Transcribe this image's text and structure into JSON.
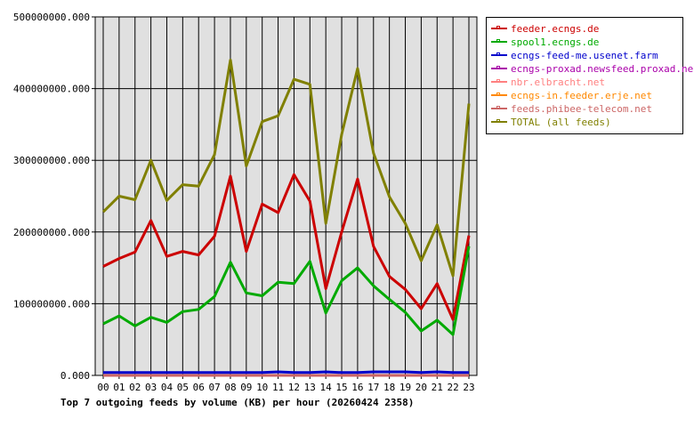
{
  "chart_data": {
    "type": "line",
    "title": "Top 7 outgoing feeds by volume (KB) per hour (20260424 2358)",
    "categories": [
      "00",
      "01",
      "02",
      "03",
      "04",
      "05",
      "06",
      "07",
      "08",
      "09",
      "10",
      "11",
      "12",
      "13",
      "14",
      "15",
      "16",
      "17",
      "18",
      "19",
      "20",
      "21",
      "22",
      "23"
    ],
    "ylim": [
      0,
      500000000
    ],
    "y_ticks": [
      "0.000",
      "100000000.000",
      "200000000.000",
      "300000000.000",
      "400000000.000",
      "500000000.000"
    ],
    "grid": true,
    "legend_position": "right",
    "series": [
      {
        "name": "feeder.ecngs.de",
        "color": "#cc0000",
        "values": [
          152000000,
          163000000,
          172000000,
          216000000,
          166000000,
          173000000,
          168000000,
          194000000,
          278000000,
          173000000,
          239000000,
          227000000,
          280000000,
          243000000,
          121000000,
          200000000,
          274000000,
          180000000,
          138000000,
          120000000,
          93000000,
          128000000,
          78000000,
          195000000
        ]
      },
      {
        "name": "spool1.ecngs.de",
        "color": "#00aa00",
        "values": [
          72000000,
          83000000,
          69000000,
          81000000,
          74000000,
          89000000,
          92000000,
          110000000,
          158000000,
          115000000,
          111000000,
          130000000,
          128000000,
          159000000,
          87000000,
          132000000,
          150000000,
          125000000,
          106000000,
          88000000,
          62000000,
          77000000,
          57000000,
          180000000
        ]
      },
      {
        "name": "ecngs-feed-me.usenet.farm",
        "color": "#0000cc",
        "values": [
          4000000,
          4000000,
          4000000,
          4000000,
          4000000,
          4000000,
          4000000,
          4000000,
          4000000,
          4000000,
          4000000,
          5000000,
          4000000,
          4000000,
          5000000,
          4000000,
          4000000,
          5000000,
          5000000,
          5000000,
          4000000,
          5000000,
          4000000,
          4000000
        ]
      },
      {
        "name": "ecngs-proxad.newsfeed.proxad.net",
        "color": "#aa00aa",
        "values": [
          0,
          0,
          0,
          0,
          0,
          0,
          0,
          0,
          0,
          0,
          0,
          0,
          0,
          0,
          0,
          0,
          0,
          0,
          0,
          0,
          0,
          0,
          0,
          0
        ]
      },
      {
        "name": "nbr.elbracht.net",
        "color": "#ff8080",
        "values": [
          0,
          0,
          0,
          0,
          0,
          0,
          0,
          0,
          0,
          0,
          0,
          0,
          0,
          0,
          0,
          0,
          0,
          0,
          0,
          0,
          0,
          0,
          0,
          0
        ]
      },
      {
        "name": "ecngs-in.feeder.erje.net",
        "color": "#ff8800",
        "values": [
          0,
          0,
          0,
          0,
          0,
          0,
          0,
          0,
          0,
          0,
          0,
          0,
          0,
          0,
          0,
          0,
          0,
          0,
          0,
          0,
          0,
          0,
          0,
          0
        ]
      },
      {
        "name": "feeds.phibee-telecom.net",
        "color": "#cc6666",
        "values": [
          0,
          0,
          0,
          0,
          0,
          0,
          0,
          0,
          0,
          0,
          0,
          0,
          0,
          0,
          0,
          0,
          0,
          0,
          0,
          0,
          0,
          0,
          0,
          0
        ]
      },
      {
        "name": "TOTAL (all feeds)",
        "color": "#808000",
        "values": [
          228000000,
          250000000,
          245000000,
          300000000,
          244000000,
          266000000,
          264000000,
          308000000,
          440000000,
          292000000,
          354000000,
          362000000,
          413000000,
          406000000,
          212000000,
          336000000,
          428000000,
          310000000,
          249000000,
          212000000,
          160000000,
          210000000,
          139000000,
          379000000
        ]
      }
    ]
  },
  "colors": {
    "plot_background": "#e0e0e0",
    "grid": "#000000"
  }
}
